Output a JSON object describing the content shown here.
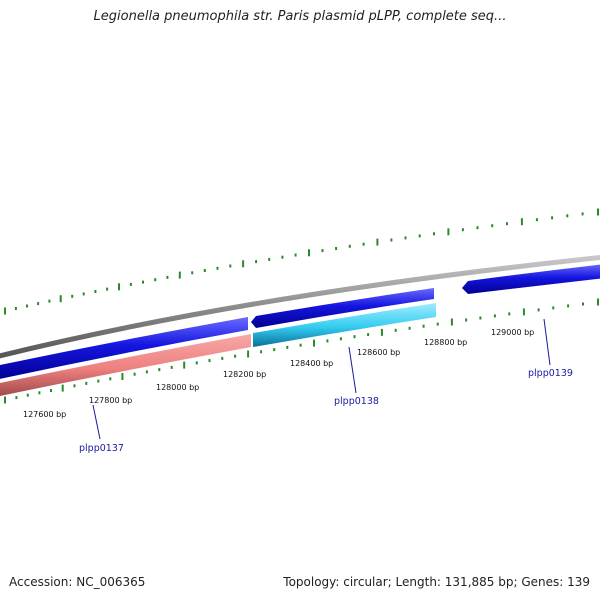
{
  "header": {
    "title": "Legionella pneumophila str. Paris plasmid pLPP, complete seq..."
  },
  "footer": {
    "accession": "Accession: NC_006365",
    "summary": "Topology: circular; Length: 131,885 bp; Genes: 139"
  },
  "colors": {
    "backbone": "#8c8c8c",
    "forward_gene": "#1515e0",
    "reverse_gene_pink": "#ee8080",
    "reverse_gene_cyan": "#33ccf0",
    "tick_marks": "#2a8a2a",
    "gene_label": "#1a1aa0"
  },
  "ticks": {
    "labels": [
      "127600 bp",
      "127800 bp",
      "128000 bp",
      "128200 bp",
      "128400 bp",
      "128600 bp",
      "128800 bp",
      "129000 bp"
    ]
  },
  "genes": [
    {
      "name": "plpp0137",
      "strand": "reverse",
      "color": "pink"
    },
    {
      "name": "plpp0138",
      "strand": "reverse",
      "color": "cyan"
    },
    {
      "name": "plpp0139",
      "strand": "forward",
      "color": "blue"
    }
  ]
}
